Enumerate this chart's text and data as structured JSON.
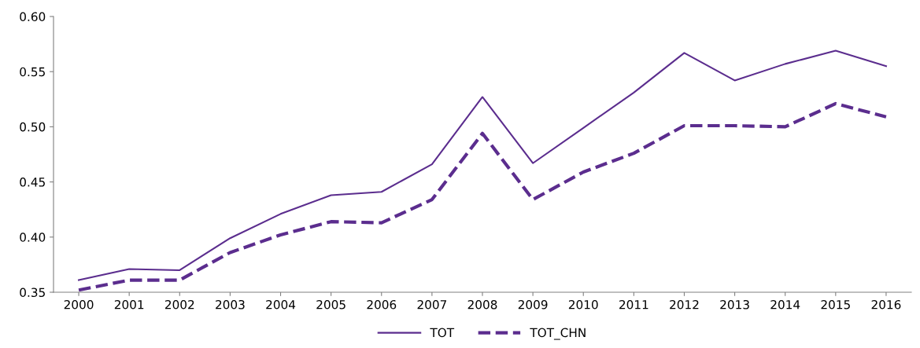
{
  "chart_data": {
    "type": "line",
    "categories": [
      "2000",
      "2001",
      "2002",
      "2003",
      "2004",
      "2005",
      "2006",
      "2007",
      "2008",
      "2009",
      "2010",
      "2011",
      "2012",
      "2013",
      "2014",
      "2015",
      "2016"
    ],
    "series": [
      {
        "name": "TOT",
        "color": "#5b2d8e",
        "line_style": "solid",
        "values": [
          0.361,
          0.371,
          0.37,
          0.399,
          0.421,
          0.438,
          0.441,
          0.466,
          0.527,
          0.467,
          0.499,
          0.531,
          0.567,
          0.542,
          0.557,
          0.569,
          0.555
        ]
      },
      {
        "name": "TOT_CHN",
        "color": "#5b2d8e",
        "line_style": "dashed",
        "values": [
          0.352,
          0.361,
          0.361,
          0.386,
          0.402,
          0.414,
          0.413,
          0.434,
          0.494,
          0.434,
          0.459,
          0.476,
          0.501,
          0.501,
          0.5,
          0.521,
          0.509
        ]
      }
    ],
    "ylim": [
      0.35,
      0.6
    ],
    "yticks": [
      {
        "value": 0.35,
        "label": "0.35"
      },
      {
        "value": 0.4,
        "label": "0.40"
      },
      {
        "value": 0.45,
        "label": "0.45"
      },
      {
        "value": 0.5,
        "label": "0.50"
      },
      {
        "value": 0.55,
        "label": "0.55"
      },
      {
        "value": 0.6,
        "label": "0.60"
      }
    ],
    "grid": false,
    "legend": "bottom",
    "marker": "none"
  }
}
